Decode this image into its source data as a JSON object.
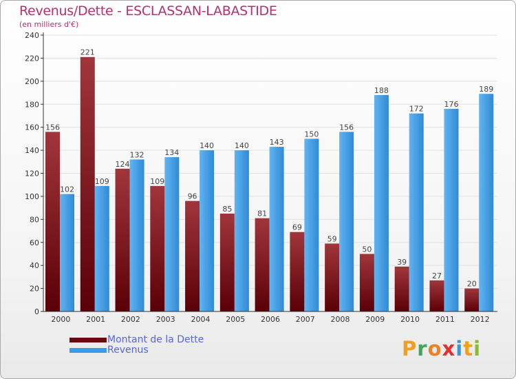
{
  "title": "Revenus/Dette - ESCLASSAN-LABASTIDE",
  "subtitle": "(en milliers d'€)",
  "colors": {
    "title": "#b0336a",
    "dette": "#7a0d12",
    "revenus": "#3d9be3",
    "legend_text": "#5566dd"
  },
  "logo": {
    "text": "Proxiti",
    "letters": [
      {
        "ch": "P",
        "color": "#f0a020"
      },
      {
        "ch": "r",
        "color": "#3aaa55"
      },
      {
        "ch": "o",
        "color": "#f08020"
      },
      {
        "ch": "x",
        "color": "#e03030"
      },
      {
        "ch": "i",
        "color": "#3399dd"
      },
      {
        "ch": "t",
        "color": "#f0a020"
      },
      {
        "ch": "i",
        "color": "#88bb33"
      }
    ]
  },
  "chart_data": {
    "type": "bar",
    "title": "Revenus/Dette - ESCLASSAN-LABASTIDE",
    "ylabel": "(en milliers d'€)",
    "categories": [
      "2000",
      "2001",
      "2002",
      "2003",
      "2004",
      "2005",
      "2006",
      "2007",
      "2008",
      "2009",
      "2010",
      "2011",
      "2012"
    ],
    "series": [
      {
        "name": "Montant de la Dette",
        "color": "#7a0d12",
        "values": [
          156,
          221,
          124,
          109,
          96,
          85,
          81,
          69,
          59,
          50,
          39,
          27,
          20
        ]
      },
      {
        "name": "Revenus",
        "color": "#3d9be3",
        "values": [
          102,
          109,
          132,
          134,
          140,
          140,
          143,
          150,
          156,
          188,
          172,
          176,
          189
        ]
      }
    ],
    "ylim": [
      0,
      240
    ],
    "yticks": [
      0,
      20,
      40,
      60,
      80,
      100,
      120,
      140,
      160,
      180,
      200,
      220,
      240
    ],
    "grid": true,
    "legend": "bottom-left"
  }
}
